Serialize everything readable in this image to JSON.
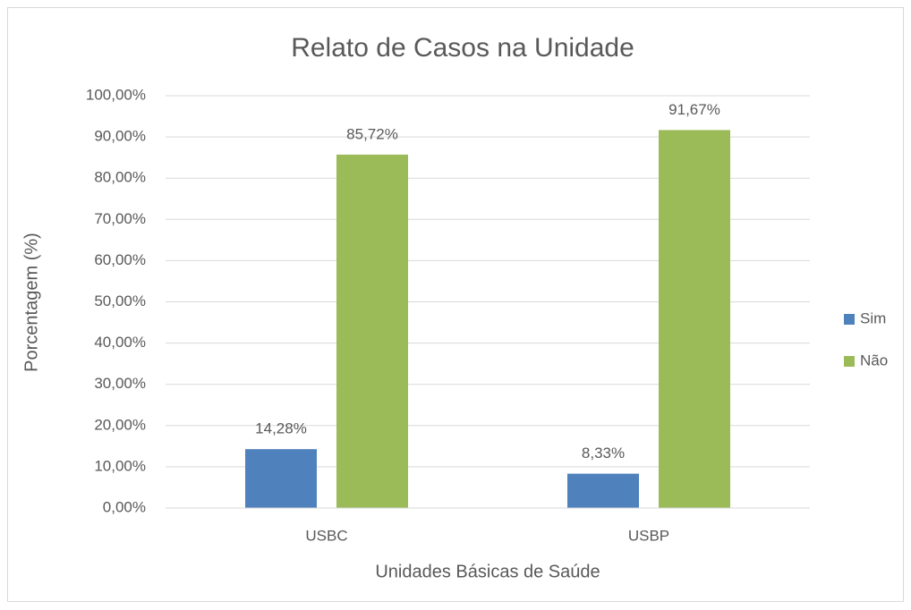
{
  "chart_data": {
    "type": "bar",
    "title": "Relato de Casos na Unidade",
    "xlabel": "Unidades Básicas de Saúde",
    "ylabel": "Porcentagem (%)",
    "categories": [
      "USBC",
      "USBP"
    ],
    "series": [
      {
        "name": "Sim",
        "color": "#4f81bd",
        "values": [
          14.28,
          8.33
        ],
        "value_labels": [
          "14,28%",
          "8,33%"
        ]
      },
      {
        "name": "Não",
        "color": "#9bbb59",
        "values": [
          85.72,
          91.67
        ],
        "value_labels": [
          "85,72%",
          "91,67%"
        ]
      }
    ],
    "ylim": [
      0,
      100
    ],
    "yticks": [
      {
        "value": 0,
        "label": "0,00%"
      },
      {
        "value": 10,
        "label": "10,00%"
      },
      {
        "value": 20,
        "label": "20,00%"
      },
      {
        "value": 30,
        "label": "30,00%"
      },
      {
        "value": 40,
        "label": "40,00%"
      },
      {
        "value": 50,
        "label": "50,00%"
      },
      {
        "value": 60,
        "label": "60,00%"
      },
      {
        "value": 70,
        "label": "70,00%"
      },
      {
        "value": 80,
        "label": "80,00%"
      },
      {
        "value": 90,
        "label": "90,00%"
      },
      {
        "value": 100,
        "label": "100,00%"
      }
    ],
    "grid": true,
    "legend": "right"
  }
}
